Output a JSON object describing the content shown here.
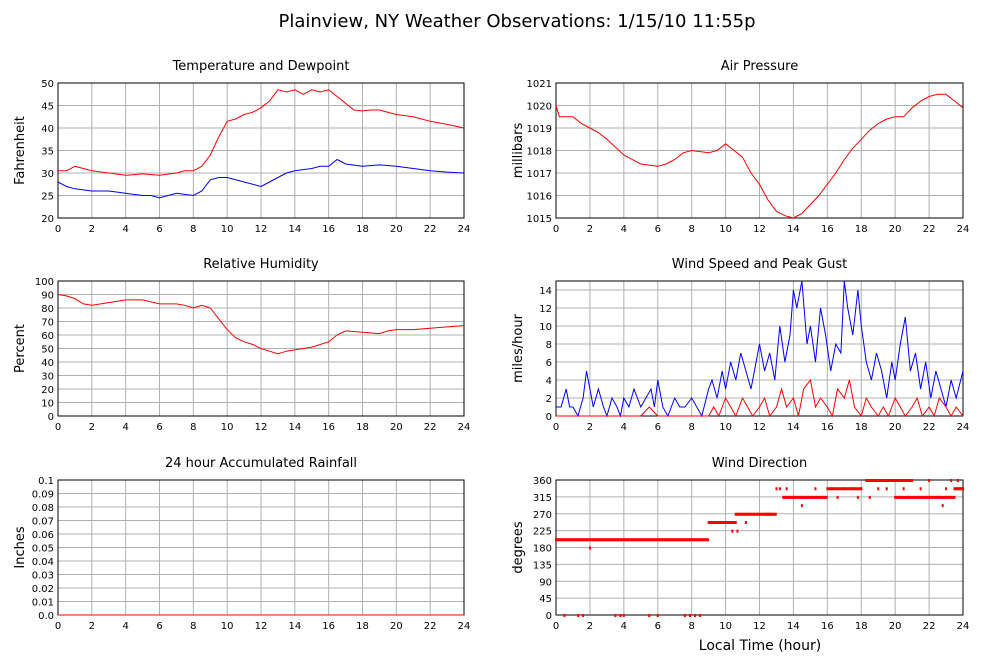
{
  "page_title": "Plainview, NY Weather Observations: 1/15/10 11:55p",
  "xlabel_common": "Local Time (hour)",
  "colors": {
    "red": "#ff0000",
    "blue": "#0000ff",
    "grid": "#b0b0b0",
    "axis": "#000000"
  },
  "chart_data": [
    {
      "id": "temp",
      "type": "line",
      "title": "Temperature and Dewpoint",
      "ylabel": "Fahrenheit",
      "xlim": [
        0,
        24
      ],
      "ylim": [
        20,
        50
      ],
      "xticks": [
        0,
        2,
        4,
        6,
        8,
        10,
        12,
        14,
        16,
        18,
        20,
        22,
        24
      ],
      "yticks": [
        20,
        25,
        30,
        35,
        40,
        45,
        50
      ],
      "series": [
        {
          "color": "#ff0000",
          "x": [
            0,
            0.5,
            1,
            1.5,
            2,
            3,
            4,
            5,
            6,
            7,
            7.5,
            8,
            8.5,
            9,
            9.5,
            10,
            10.5,
            11,
            11.5,
            12,
            12.5,
            13,
            13.5,
            14,
            14.5,
            15,
            15.5,
            16,
            16.5,
            17,
            17.5,
            18,
            18.5,
            19,
            20,
            21,
            22,
            23,
            24
          ],
          "y": [
            30.5,
            30.5,
            31.5,
            31,
            30.5,
            30,
            29.5,
            29.8,
            29.5,
            30,
            30.5,
            30.5,
            31.5,
            34,
            38,
            41.5,
            42,
            43,
            43.5,
            44.5,
            46,
            48.5,
            48,
            48.5,
            47.5,
            48.5,
            48,
            48.5,
            47,
            45.5,
            44,
            43.8,
            44,
            44,
            43,
            42.5,
            41.5,
            40.8,
            40
          ]
        },
        {
          "color": "#0000ff",
          "x": [
            0,
            0.5,
            1,
            2,
            3,
            4,
            5,
            5.5,
            6,
            7,
            8,
            8.5,
            9,
            9.5,
            10,
            11,
            12,
            12.5,
            13,
            13.5,
            14,
            15,
            15.5,
            16,
            16.5,
            17,
            18,
            19,
            20,
            21,
            22,
            23,
            24
          ],
          "y": [
            28,
            27,
            26.5,
            26,
            26,
            25.5,
            25,
            25,
            24.5,
            25.5,
            25,
            26,
            28.5,
            29,
            29,
            28,
            27,
            28,
            29,
            30,
            30.5,
            31,
            31.5,
            31.5,
            33,
            32,
            31.5,
            31.8,
            31.5,
            31,
            30.5,
            30.2,
            30
          ]
        }
      ]
    },
    {
      "id": "pressure",
      "type": "line",
      "title": "Air Pressure",
      "ylabel": "millibars",
      "xlim": [
        0,
        24
      ],
      "ylim": [
        1015,
        1021
      ],
      "xticks": [
        0,
        2,
        4,
        6,
        8,
        10,
        12,
        14,
        16,
        18,
        20,
        22,
        24
      ],
      "yticks": [
        1015,
        1016,
        1017,
        1018,
        1019,
        1020,
        1021
      ],
      "series": [
        {
          "color": "#ff0000",
          "x": [
            0,
            0.2,
            1,
            1.5,
            2,
            2.5,
            3,
            4,
            5,
            6,
            6.5,
            7,
            7.5,
            8,
            9,
            9.5,
            10,
            10.5,
            11,
            11.5,
            12,
            12.5,
            13,
            13.5,
            14,
            14.5,
            15,
            15.5,
            16,
            16.5,
            17,
            17.5,
            18,
            18.5,
            19,
            19.5,
            20,
            20.5,
            21,
            21.5,
            22,
            22.5,
            23,
            23.5,
            24
          ],
          "y": [
            1020,
            1019.5,
            1019.5,
            1019.2,
            1019,
            1018.8,
            1018.5,
            1017.8,
            1017.4,
            1017.3,
            1017.4,
            1017.6,
            1017.9,
            1018,
            1017.9,
            1018,
            1018.3,
            1018,
            1017.7,
            1017,
            1016.5,
            1015.8,
            1015.3,
            1015.1,
            1015,
            1015.2,
            1015.6,
            1016,
            1016.5,
            1017,
            1017.6,
            1018.1,
            1018.5,
            1018.9,
            1019.2,
            1019.4,
            1019.5,
            1019.5,
            1019.9,
            1020.2,
            1020.4,
            1020.5,
            1020.5,
            1020.2,
            1019.9
          ]
        }
      ]
    },
    {
      "id": "humidity",
      "type": "line",
      "title": "Relative Humidity",
      "ylabel": "Percent",
      "xlim": [
        0,
        24
      ],
      "ylim": [
        0,
        100
      ],
      "xticks": [
        0,
        2,
        4,
        6,
        8,
        10,
        12,
        14,
        16,
        18,
        20,
        22,
        24
      ],
      "yticks": [
        0,
        10,
        20,
        30,
        40,
        50,
        60,
        70,
        80,
        90,
        100
      ],
      "series": [
        {
          "color": "#ff0000",
          "x": [
            0,
            0.5,
            1,
            1.5,
            2,
            3,
            4,
            5,
            6,
            7,
            7.5,
            8,
            8.5,
            9,
            9.5,
            10,
            10.5,
            11,
            11.5,
            12,
            12.5,
            13,
            13.5,
            14,
            15,
            16,
            16.5,
            17,
            18,
            19,
            19.5,
            20,
            21,
            22,
            23,
            24
          ],
          "y": [
            90,
            89,
            87,
            83,
            82,
            84,
            86,
            86,
            83,
            83,
            82,
            80,
            82,
            80,
            72,
            64,
            58,
            55,
            53,
            50,
            48,
            46,
            48,
            49,
            51,
            55,
            60,
            63,
            62,
            61,
            63,
            64,
            64,
            65,
            66,
            67
          ]
        }
      ]
    },
    {
      "id": "wind",
      "type": "line",
      "title": "Wind Speed and Peak Gust",
      "ylabel": "miles/hour",
      "xlim": [
        0,
        24
      ],
      "ylim": [
        0,
        15
      ],
      "xticks": [
        0,
        2,
        4,
        6,
        8,
        10,
        12,
        14,
        16,
        18,
        20,
        22,
        24
      ],
      "yticks": [
        0,
        2,
        4,
        6,
        8,
        10,
        12,
        14
      ],
      "series": [
        {
          "color": "#0000ff",
          "x": [
            0,
            0.3,
            0.6,
            0.8,
            1,
            1.3,
            1.6,
            1.8,
            2,
            2.2,
            2.5,
            2.8,
            3,
            3.3,
            3.6,
            3.8,
            4,
            4.3,
            4.6,
            5,
            5.3,
            5.6,
            5.8,
            6,
            6.3,
            6.6,
            7,
            7.3,
            7.6,
            8,
            8.3,
            8.6,
            9,
            9.2,
            9.5,
            9.8,
            10,
            10.3,
            10.6,
            10.9,
            11.2,
            11.5,
            11.8,
            12,
            12.3,
            12.6,
            12.9,
            13.2,
            13.5,
            13.8,
            14,
            14.2,
            14.5,
            14.8,
            15,
            15.3,
            15.6,
            15.9,
            16.2,
            16.5,
            16.8,
            17,
            17.2,
            17.5,
            17.8,
            18,
            18.3,
            18.6,
            18.9,
            19.2,
            19.5,
            19.8,
            20,
            20.3,
            20.6,
            20.9,
            21.2,
            21.5,
            21.8,
            22.1,
            22.4,
            22.7,
            23,
            23.3,
            23.6,
            24
          ],
          "y": [
            1,
            1,
            3,
            1,
            1,
            0,
            2,
            5,
            3,
            1,
            3,
            1,
            0,
            2,
            1,
            0,
            2,
            1,
            3,
            1,
            2,
            3,
            1,
            4,
            1,
            0,
            2,
            1,
            1,
            2,
            1,
            0,
            3,
            4,
            2,
            5,
            3,
            6,
            4,
            7,
            5,
            3,
            6,
            8,
            5,
            7,
            4,
            10,
            6,
            9,
            14,
            12,
            15,
            8,
            10,
            6,
            12,
            9,
            5,
            8,
            7,
            15,
            12,
            9,
            14,
            10,
            6,
            4,
            7,
            5,
            2,
            6,
            4,
            8,
            11,
            5,
            7,
            3,
            6,
            2,
            5,
            3,
            1,
            4,
            2,
            5
          ]
        },
        {
          "color": "#ff0000",
          "x": [
            0,
            1,
            2,
            3,
            4,
            5,
            5.5,
            6,
            7,
            8,
            9,
            9.3,
            9.6,
            10,
            10.3,
            10.6,
            11,
            11.3,
            11.6,
            12,
            12.3,
            12.6,
            13,
            13.3,
            13.6,
            14,
            14.3,
            14.6,
            15,
            15.3,
            15.6,
            16,
            16.3,
            16.6,
            17,
            17.3,
            17.6,
            18,
            18.3,
            18.6,
            19,
            19.3,
            19.6,
            20,
            20.3,
            20.6,
            21,
            21.3,
            21.6,
            22,
            22.3,
            22.6,
            23,
            23.3,
            23.6,
            24
          ],
          "y": [
            0,
            0,
            0,
            0,
            0,
            0,
            1,
            0,
            0,
            0,
            0,
            1,
            0,
            2,
            1,
            0,
            2,
            1,
            0,
            1,
            2,
            0,
            1,
            3,
            1,
            2,
            0,
            3,
            4,
            1,
            2,
            1,
            0,
            3,
            2,
            4,
            1,
            0,
            2,
            1,
            0,
            1,
            0,
            2,
            1,
            0,
            1,
            2,
            0,
            1,
            0,
            2,
            1,
            0,
            1,
            0
          ]
        }
      ]
    },
    {
      "id": "rain",
      "type": "line",
      "title": "24 hour Accumulated Rainfall",
      "ylabel": "Inches",
      "xlim": [
        0,
        24
      ],
      "ylim": [
        0,
        0.1
      ],
      "xticks": [
        0,
        2,
        4,
        6,
        8,
        10,
        12,
        14,
        16,
        18,
        20,
        22,
        24
      ],
      "yticks": [
        0,
        0.01,
        0.02,
        0.03,
        0.04,
        0.05,
        0.06,
        0.07,
        0.08,
        0.09,
        0.1
      ],
      "ytick_labels": [
        "0.0",
        "0.01",
        "0.02",
        "0.03",
        "0.04",
        "0.05",
        "0.06",
        "0.07",
        "0.08",
        "0.09",
        "0.1"
      ],
      "series": [
        {
          "color": "#ff0000",
          "x": [
            0,
            24
          ],
          "y": [
            0,
            0
          ]
        }
      ]
    },
    {
      "id": "direction",
      "type": "scatter",
      "title": "Wind Direction",
      "ylabel": "degrees",
      "xlabel": "Local Time (hour)",
      "xlim": [
        0,
        24
      ],
      "ylim": [
        0,
        360
      ],
      "xticks": [
        0,
        2,
        4,
        6,
        8,
        10,
        12,
        14,
        16,
        18,
        20,
        22,
        24
      ],
      "yticks": [
        0,
        45,
        90,
        135,
        180,
        225,
        270,
        315,
        360
      ],
      "segments": [
        {
          "x_start": 0,
          "x_end": 9,
          "y": 202,
          "step": 0.08
        },
        {
          "x_start": 9,
          "x_end": 10.6,
          "y": 248,
          "step": 0.08
        },
        {
          "x_start": 10.6,
          "x_end": 12.4,
          "y": 270,
          "step": 0.1
        },
        {
          "x_start": 12.4,
          "x_end": 13,
          "y": 270,
          "step": 0.08
        },
        {
          "x_start": 13.4,
          "x_end": 16,
          "y": 315,
          "step": 0.08
        },
        {
          "x_start": 16,
          "x_end": 18,
          "y": 338,
          "step": 0.1
        },
        {
          "x_start": 18.3,
          "x_end": 21,
          "y": 360,
          "step": 0.08
        },
        {
          "x_start": 20,
          "x_end": 23.5,
          "y": 315,
          "step": 0.1
        },
        {
          "x_start": 23.5,
          "x_end": 24,
          "y": 338,
          "step": 0.08
        }
      ],
      "points": {
        "x": [
          0.5,
          1.3,
          1.6,
          2,
          3.5,
          3.8,
          4,
          5.5,
          6,
          7.6,
          7.9,
          8.2,
          8.5,
          10.4,
          10.7,
          11.2,
          12.6,
          13,
          13.2,
          13.6,
          14.5,
          15.3,
          16.3,
          16.6,
          17,
          17.4,
          17.8,
          18,
          18.5,
          19,
          19.2,
          19.5,
          20.5,
          21,
          21.5,
          22,
          22.5,
          22.8,
          23,
          23.3,
          23.7,
          24
        ],
        "y": [
          0,
          0,
          0,
          180,
          0,
          0,
          0,
          0,
          0,
          0,
          0,
          0,
          0,
          225,
          225,
          248,
          270,
          338,
          338,
          338,
          293,
          338,
          338,
          315,
          338,
          338,
          315,
          338,
          315,
          338,
          360,
          338,
          338,
          360,
          338,
          360,
          315,
          293,
          338,
          360,
          360,
          338
        ]
      }
    }
  ]
}
